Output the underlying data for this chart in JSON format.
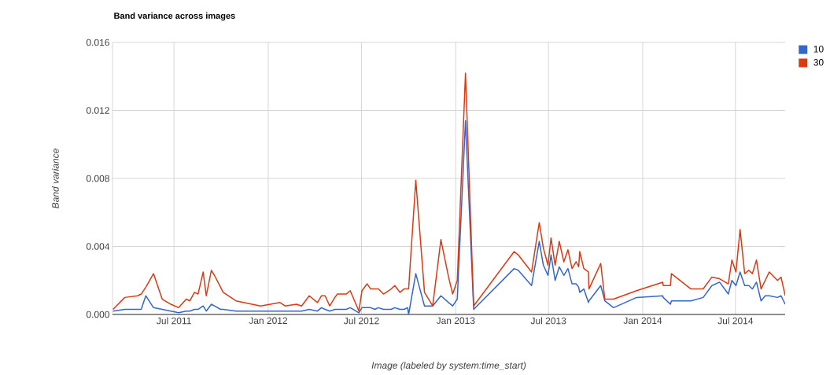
{
  "chart_data": {
    "type": "line",
    "title": "Band variance across images",
    "xlabel": "Image (labeled by system:time_start)",
    "ylabel": "Band variance",
    "x": [
      "2011-03-04",
      "2011-03-27",
      "2011-04-21",
      "2011-04-28",
      "2011-05-07",
      "2011-05-22",
      "2011-06-08",
      "2011-06-25",
      "2011-07-10",
      "2011-07-25",
      "2011-08-01",
      "2011-08-10",
      "2011-08-17",
      "2011-08-27",
      "2011-09-02",
      "2011-09-12",
      "2011-09-18",
      "2011-09-30",
      "2011-10-05",
      "2011-10-30",
      "2011-12-17",
      "2012-01-24",
      "2012-02-03",
      "2012-02-25",
      "2012-03-06",
      "2012-03-21",
      "2012-04-06",
      "2012-04-14",
      "2012-04-21",
      "2012-04-30",
      "2012-05-10",
      "2012-05-15",
      "2012-06-01",
      "2012-06-09",
      "2012-06-26",
      "2012-07-02",
      "2012-07-12",
      "2012-07-19",
      "2012-07-27",
      "2012-08-03",
      "2012-08-13",
      "2012-08-28",
      "2012-09-04",
      "2012-09-14",
      "2012-09-22",
      "2012-09-29",
      "2012-10-01",
      "2012-10-15",
      "2012-11-01",
      "2012-11-17",
      "2012-12-03",
      "2012-12-18",
      "2012-12-26",
      "2013-01-04",
      "2013-01-20",
      "2013-02-05",
      "2013-04-25",
      "2013-05-03",
      "2013-05-29",
      "2013-06-13",
      "2013-06-21",
      "2013-06-30",
      "2013-07-06",
      "2013-07-14",
      "2013-07-22",
      "2013-07-31",
      "2013-08-08",
      "2013-08-16",
      "2013-08-24",
      "2013-08-29",
      "2013-08-31",
      "2013-09-08",
      "2013-09-17",
      "2013-09-18",
      "2013-10-11",
      "2013-10-19",
      "2013-11-05",
      "2013-12-20",
      "2014-02-09",
      "2014-02-10",
      "2014-02-24",
      "2014-02-26",
      "2014-04-05",
      "2014-04-29",
      "2014-05-16",
      "2014-05-31",
      "2014-06-17",
      "2014-06-24",
      "2014-07-02",
      "2014-07-10",
      "2014-07-19",
      "2014-07-27",
      "2014-08-03",
      "2014-08-11",
      "2014-08-20",
      "2014-08-28",
      "2014-09-05",
      "2014-09-21",
      "2014-09-28",
      "2014-10-06"
    ],
    "series": [
      {
        "name": "10",
        "color": "#3366cc",
        "values": [
          0.0002,
          0.0003,
          0.0003,
          0.0003,
          0.0011,
          0.0004,
          0.0003,
          0.0002,
          0.0001,
          0.0002,
          0.0002,
          0.0003,
          0.0003,
          0.0005,
          0.0002,
          0.0006,
          0.0005,
          0.0003,
          0.0003,
          0.0002,
          0.0002,
          0.0002,
          0.0002,
          0.0002,
          0.0002,
          0.0003,
          0.0002,
          0.0004,
          0.0003,
          0.0002,
          0.0003,
          0.0003,
          0.0003,
          0.0004,
          0.0001,
          0.0004,
          0.0004,
          0.0004,
          0.0003,
          0.0004,
          0.0003,
          0.0003,
          0.0004,
          0.0003,
          0.0003,
          0.0004,
          0.0,
          0.0024,
          0.0005,
          0.0005,
          0.0011,
          0.0007,
          0.0005,
          0.0009,
          0.0114,
          0.0003,
          0.0027,
          0.0026,
          0.0017,
          0.0043,
          0.0029,
          0.0023,
          0.0035,
          0.002,
          0.0028,
          0.0023,
          0.0027,
          0.0018,
          0.0018,
          0.0016,
          0.0013,
          0.0015,
          0.0007,
          0.0008,
          0.0017,
          0.0008,
          0.0004,
          0.001,
          0.0011,
          0.001,
          0.0006,
          0.0008,
          0.0008,
          0.001,
          0.0017,
          0.0019,
          0.0012,
          0.002,
          0.0017,
          0.0025,
          0.0017,
          0.0017,
          0.0015,
          0.0019,
          0.0008,
          0.0011,
          0.0011,
          0.001,
          0.0011,
          0.0006
        ]
      },
      {
        "name": "30",
        "color": "#dc3912",
        "values": [
          0.0003,
          0.001,
          0.0011,
          0.0012,
          0.0016,
          0.0024,
          0.0009,
          0.0006,
          0.0004,
          0.0009,
          0.0008,
          0.0013,
          0.0012,
          0.0025,
          0.0011,
          0.0026,
          0.0023,
          0.0016,
          0.0013,
          0.0008,
          0.0005,
          0.0007,
          0.0005,
          0.0006,
          0.0005,
          0.0011,
          0.0007,
          0.0011,
          0.0011,
          0.0005,
          0.001,
          0.0012,
          0.0012,
          0.0014,
          0.0002,
          0.0014,
          0.0018,
          0.0015,
          0.0015,
          0.0015,
          0.0012,
          0.0015,
          0.0017,
          0.0013,
          0.0015,
          0.0015,
          0.0015,
          0.0079,
          0.0013,
          0.0005,
          0.0044,
          0.0022,
          0.0012,
          0.002,
          0.0142,
          0.0005,
          0.0037,
          0.0035,
          0.0025,
          0.0054,
          0.0039,
          0.0029,
          0.0045,
          0.0029,
          0.0043,
          0.0031,
          0.0038,
          0.0027,
          0.0031,
          0.0028,
          0.0037,
          0.0027,
          0.0025,
          0.0015,
          0.003,
          0.0009,
          0.0009,
          0.0014,
          0.0019,
          0.0017,
          0.0017,
          0.0024,
          0.0015,
          0.0015,
          0.0022,
          0.0021,
          0.0018,
          0.0032,
          0.0025,
          0.005,
          0.0024,
          0.0026,
          0.0024,
          0.0032,
          0.0015,
          0.002,
          0.0025,
          0.002,
          0.0022,
          0.0011
        ]
      }
    ],
    "xlim": [
      "2011-03-03",
      "2014-10-06"
    ],
    "xticks": [
      {
        "value": "2011-07-01",
        "label": "Jul 2011"
      },
      {
        "value": "2012-01-01",
        "label": "Jan 2012"
      },
      {
        "value": "2012-07-01",
        "label": "Jul 2012"
      },
      {
        "value": "2013-01-01",
        "label": "Jan 2013"
      },
      {
        "value": "2013-07-01",
        "label": "Jul 2013"
      },
      {
        "value": "2014-01-01",
        "label": "Jan 2014"
      },
      {
        "value": "2014-07-01",
        "label": "Jul 2014"
      }
    ],
    "ylim": [
      0,
      0.016
    ],
    "yticks": [
      {
        "value": 0,
        "label": "0.000"
      },
      {
        "value": 0.004,
        "label": "0.004"
      },
      {
        "value": 0.008,
        "label": "0.008"
      },
      {
        "value": 0.012,
        "label": "0.012"
      },
      {
        "value": 0.016,
        "label": "0.016"
      }
    ],
    "grid": true,
    "legend": "top right"
  }
}
